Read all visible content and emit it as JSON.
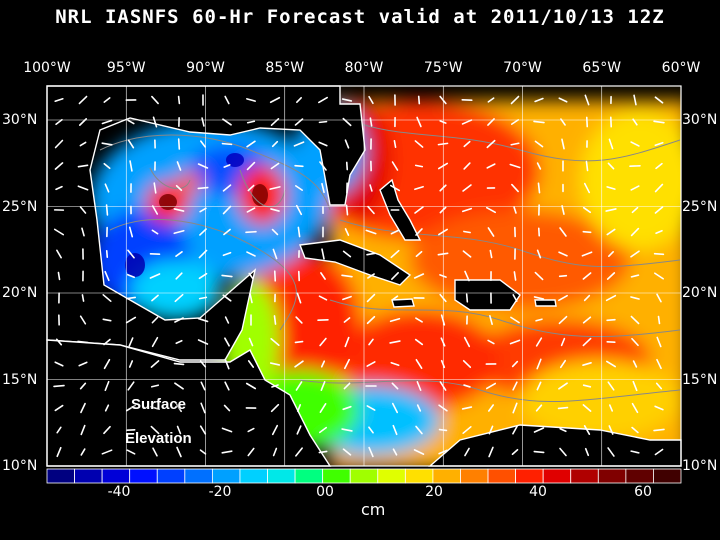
{
  "title": "NRL IASNFS  60-Hr Forecast valid at 2011/10/13 12Z",
  "lon_labels": [
    "100°W",
    "95°W",
    "90°W",
    "85°W",
    "80°W",
    "75°W",
    "70°W",
    "65°W",
    "60°W"
  ],
  "lat_labels": [
    "30°N",
    "25°N",
    "20°N",
    "15°N",
    "10°N"
  ],
  "annotation": {
    "line1": "Surface",
    "line2": "Elevation"
  },
  "colorbar": {
    "unit": "cm",
    "tick_labels": [
      "-40",
      "-20",
      "00",
      "20",
      "40",
      "60"
    ],
    "colors": [
      "#000080",
      "#0000b0",
      "#0000d8",
      "#0010ff",
      "#0040ff",
      "#0070ff",
      "#00a0ff",
      "#00d0ff",
      "#00e8e8",
      "#00ff80",
      "#40ff00",
      "#a0ff00",
      "#e0ff00",
      "#ffe000",
      "#ffb000",
      "#ff8000",
      "#ff5000",
      "#ff2000",
      "#e00000",
      "#b00000",
      "#800000",
      "#600000",
      "#400000"
    ]
  },
  "colors": {
    "land": "#000000",
    "coast": "#ffffff",
    "contour": "#888888",
    "vector": "#ffffff"
  }
}
